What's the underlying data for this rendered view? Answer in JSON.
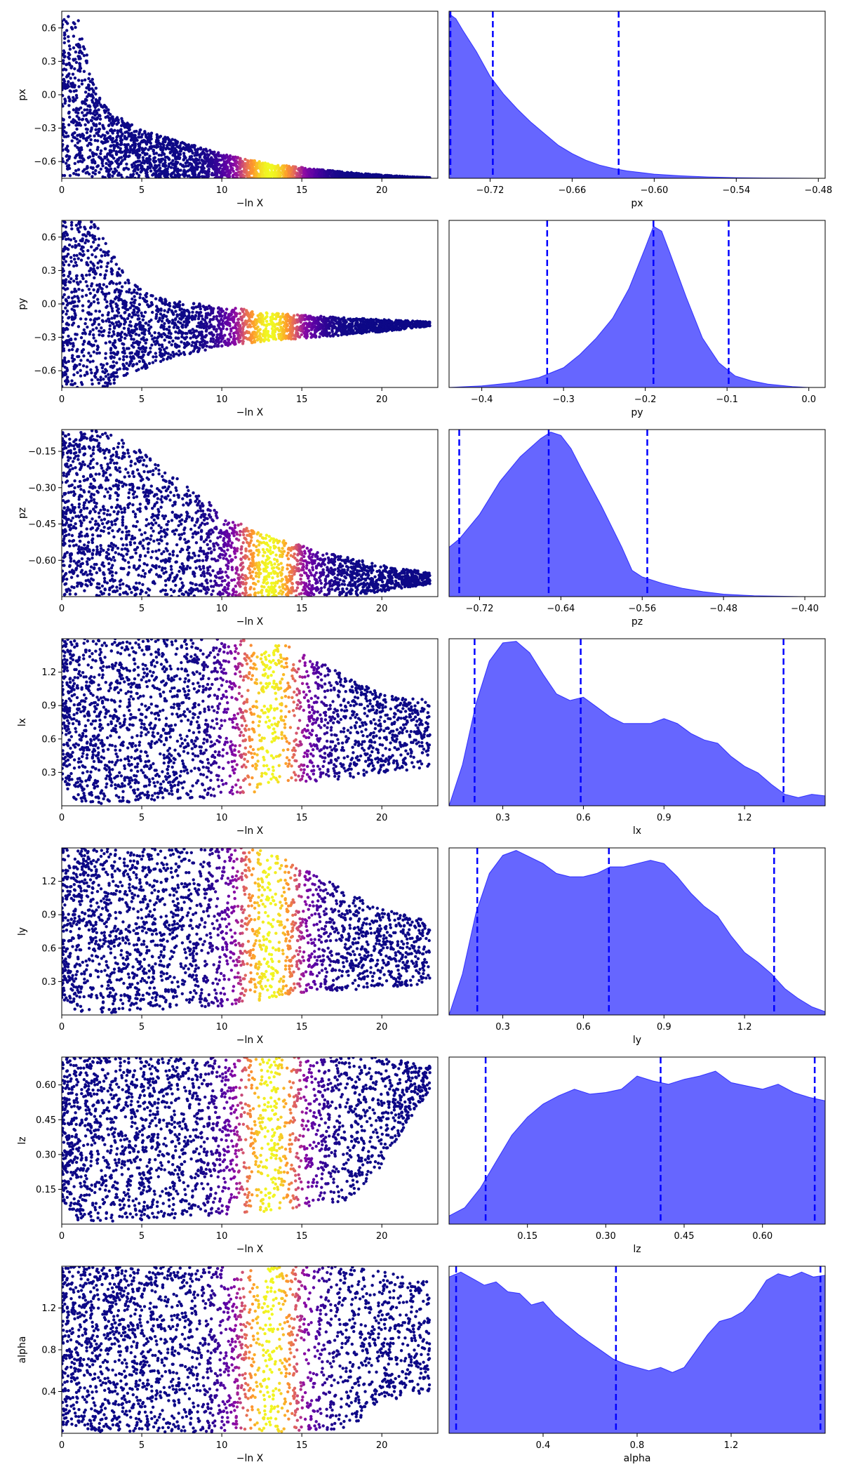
{
  "chart_data": [
    {
      "type": "scatter",
      "xlabel": "−ln X",
      "ylabel": "px",
      "xlim": [
        0,
        23.5
      ],
      "ylim": [
        -0.75,
        0.75
      ],
      "xticks": [
        0,
        5,
        10,
        15,
        20
      ],
      "yticks": [
        -0.6,
        -0.3,
        0.0,
        0.3,
        0.6
      ],
      "ytick_labels": [
        "−0.6",
        "−0.3",
        "0.0",
        "0.3",
        "0.6"
      ],
      "colormap": "plasma",
      "color_peak_x": 13,
      "envelope": {
        "x": [
          0,
          1,
          2,
          3,
          5,
          8,
          10,
          13,
          16,
          19,
          21,
          23
        ],
        "top": [
          0.72,
          0.7,
          0.1,
          -0.15,
          -0.32,
          -0.44,
          -0.53,
          -0.62,
          -0.67,
          -0.71,
          -0.73,
          -0.745
        ],
        "bottom": [
          -0.75,
          -0.75,
          -0.75,
          -0.75,
          -0.75,
          -0.75,
          -0.75,
          -0.75,
          -0.75,
          -0.75,
          -0.75,
          -0.75
        ]
      }
    },
    {
      "type": "area",
      "xlabel": "px",
      "xlim": [
        -0.75,
        -0.475
      ],
      "xticks": [
        -0.72,
        -0.66,
        -0.6,
        -0.54,
        -0.48
      ],
      "xtick_labels": [
        "−0.72",
        "−0.66",
        "−0.60",
        "−0.54",
        "−0.48"
      ],
      "density": {
        "x": [
          -0.75,
          -0.745,
          -0.74,
          -0.73,
          -0.72,
          -0.71,
          -0.7,
          -0.69,
          -0.68,
          -0.67,
          -0.66,
          -0.65,
          -0.64,
          -0.63,
          -0.62,
          -0.61,
          -0.6,
          -0.58,
          -0.56,
          -0.54,
          -0.52,
          -0.5,
          -0.48,
          -0.475
        ],
        "y": [
          1.0,
          0.97,
          0.9,
          0.77,
          0.62,
          0.51,
          0.42,
          0.34,
          0.27,
          0.2,
          0.15,
          0.11,
          0.08,
          0.06,
          0.045,
          0.035,
          0.025,
          0.015,
          0.008,
          0.004,
          0.002,
          0.001,
          0.0,
          0.0
        ]
      },
      "quantiles": [
        -0.749,
        -0.718,
        -0.626
      ]
    },
    {
      "type": "scatter",
      "xlabel": "−ln X",
      "ylabel": "py",
      "xlim": [
        0,
        23.5
      ],
      "ylim": [
        -0.75,
        0.75
      ],
      "xticks": [
        0,
        5,
        10,
        15,
        20
      ],
      "yticks": [
        -0.6,
        -0.3,
        0.0,
        0.3,
        0.6
      ],
      "ytick_labels": [
        "−0.6",
        "−0.3",
        "0.0",
        "0.3",
        "0.6"
      ],
      "colormap": "plasma",
      "color_peak_x": 13,
      "envelope": {
        "x": [
          0,
          2,
          3,
          4,
          5,
          7,
          10,
          13,
          16,
          20,
          23
        ],
        "top": [
          0.75,
          0.75,
          0.5,
          0.25,
          0.12,
          0.03,
          -0.02,
          -0.08,
          -0.11,
          -0.14,
          -0.16
        ],
        "bottom": [
          -0.75,
          -0.75,
          -0.75,
          -0.65,
          -0.6,
          -0.48,
          -0.38,
          -0.33,
          -0.3,
          -0.25,
          -0.2
        ]
      }
    },
    {
      "type": "area",
      "xlabel": "py",
      "xlim": [
        -0.44,
        0.02
      ],
      "xticks": [
        -0.4,
        -0.3,
        -0.2,
        -0.1,
        0.0
      ],
      "xtick_labels": [
        "−0.4",
        "−0.3",
        "−0.2",
        "−0.1",
        "0.0"
      ],
      "density": {
        "x": [
          -0.44,
          -0.4,
          -0.36,
          -0.33,
          -0.3,
          -0.28,
          -0.26,
          -0.24,
          -0.22,
          -0.2,
          -0.19,
          -0.18,
          -0.17,
          -0.15,
          -0.13,
          -0.11,
          -0.09,
          -0.07,
          -0.05,
          -0.02,
          0.0,
          0.02
        ],
        "y": [
          0.0,
          0.01,
          0.03,
          0.06,
          0.12,
          0.2,
          0.3,
          0.42,
          0.6,
          0.85,
          0.98,
          0.95,
          0.82,
          0.55,
          0.3,
          0.15,
          0.07,
          0.04,
          0.02,
          0.005,
          0.0,
          0.0
        ]
      },
      "quantiles": [
        -0.32,
        -0.19,
        -0.098
      ]
    },
    {
      "type": "scatter",
      "xlabel": "−ln X",
      "ylabel": "pz",
      "xlim": [
        0,
        23.5
      ],
      "ylim": [
        -0.75,
        -0.06
      ],
      "xticks": [
        0,
        5,
        10,
        15,
        20
      ],
      "yticks": [
        -0.6,
        -0.45,
        -0.3,
        -0.15
      ],
      "ytick_labels": [
        "−0.60",
        "−0.45",
        "−0.30",
        "−0.15"
      ],
      "colormap": "plasma",
      "color_peak_x": 13,
      "envelope": {
        "x": [
          0,
          2,
          4,
          6,
          8,
          10,
          12,
          14,
          16,
          18,
          20,
          23
        ],
        "top": [
          -0.06,
          -0.06,
          -0.1,
          -0.2,
          -0.3,
          -0.4,
          -0.48,
          -0.52,
          -0.56,
          -0.59,
          -0.62,
          -0.65
        ],
        "bottom": [
          -0.75,
          -0.75,
          -0.75,
          -0.75,
          -0.75,
          -0.75,
          -0.75,
          -0.75,
          -0.75,
          -0.75,
          -0.73,
          -0.7
        ]
      }
    },
    {
      "type": "area",
      "xlabel": "pz",
      "xlim": [
        -0.75,
        -0.38
      ],
      "xticks": [
        -0.72,
        -0.64,
        -0.56,
        -0.48,
        -0.4
      ],
      "xtick_labels": [
        "−0.72",
        "−0.64",
        "−0.56",
        "−0.48",
        "−0.40"
      ],
      "density": {
        "x": [
          -0.75,
          -0.74,
          -0.72,
          -0.7,
          -0.68,
          -0.66,
          -0.65,
          -0.64,
          -0.63,
          -0.62,
          -0.6,
          -0.58,
          -0.57,
          -0.56,
          -0.54,
          -0.52,
          -0.5,
          -0.48,
          -0.45,
          -0.42,
          -0.4,
          -0.38
        ],
        "y": [
          0.3,
          0.35,
          0.5,
          0.7,
          0.85,
          0.96,
          1.0,
          0.98,
          0.9,
          0.78,
          0.55,
          0.3,
          0.16,
          0.12,
          0.08,
          0.05,
          0.03,
          0.015,
          0.005,
          0.002,
          0.0,
          0.0
        ]
      },
      "quantiles": [
        -0.74,
        -0.652,
        -0.555
      ]
    },
    {
      "type": "scatter",
      "xlabel": "−ln X",
      "ylabel": "lx",
      "xlim": [
        0,
        23.5
      ],
      "ylim": [
        0.0,
        1.5
      ],
      "xticks": [
        0,
        5,
        10,
        15,
        20
      ],
      "yticks": [
        0.3,
        0.6,
        0.9,
        1.2
      ],
      "ytick_labels": [
        "0.3",
        "0.6",
        "0.9",
        "1.2"
      ],
      "colormap": "plasma",
      "color_peak_x": 13,
      "envelope": {
        "x": [
          0,
          1,
          3,
          6,
          10,
          12,
          14,
          16,
          18,
          20,
          23
        ],
        "top": [
          1.5,
          1.5,
          1.5,
          1.5,
          1.5,
          1.5,
          1.45,
          1.3,
          1.15,
          1.0,
          0.95
        ],
        "bottom": [
          0.15,
          0.02,
          0.02,
          0.05,
          0.08,
          0.12,
          0.2,
          0.22,
          0.25,
          0.3,
          0.33
        ]
      }
    },
    {
      "type": "area",
      "xlabel": "lx",
      "xlim": [
        0.1,
        1.5
      ],
      "xticks": [
        0.3,
        0.6,
        0.9,
        1.2
      ],
      "xtick_labels": [
        "0.3",
        "0.6",
        "0.9",
        "1.2"
      ],
      "density": {
        "x": [
          0.1,
          0.15,
          0.2,
          0.25,
          0.3,
          0.35,
          0.4,
          0.45,
          0.5,
          0.55,
          0.6,
          0.65,
          0.7,
          0.75,
          0.8,
          0.85,
          0.9,
          0.95,
          1.0,
          1.05,
          1.1,
          1.15,
          1.2,
          1.25,
          1.3,
          1.35,
          1.4,
          1.45,
          1.5
        ],
        "y": [
          0.0,
          0.25,
          0.62,
          0.88,
          0.99,
          1.0,
          0.93,
          0.8,
          0.68,
          0.64,
          0.66,
          0.6,
          0.54,
          0.5,
          0.5,
          0.5,
          0.53,
          0.5,
          0.44,
          0.4,
          0.38,
          0.3,
          0.24,
          0.2,
          0.13,
          0.07,
          0.05,
          0.07,
          0.06
        ]
      },
      "quantiles": [
        0.195,
        0.59,
        1.345
      ]
    },
    {
      "type": "scatter",
      "xlabel": "−ln X",
      "ylabel": "ly",
      "xlim": [
        0,
        23.5
      ],
      "ylim": [
        0.0,
        1.5
      ],
      "xticks": [
        0,
        5,
        10,
        15,
        20
      ],
      "yticks": [
        0.3,
        0.6,
        0.9,
        1.2
      ],
      "ytick_labels": [
        "0.3",
        "0.6",
        "0.9",
        "1.2"
      ],
      "colormap": "plasma",
      "color_peak_x": 13,
      "envelope": {
        "x": [
          0,
          1,
          3,
          6,
          10,
          12,
          14,
          16,
          18,
          20,
          23
        ],
        "top": [
          1.5,
          1.5,
          1.5,
          1.5,
          1.5,
          1.5,
          1.4,
          1.25,
          1.1,
          0.95,
          0.85
        ],
        "bottom": [
          0.15,
          0.02,
          0.02,
          0.05,
          0.08,
          0.12,
          0.18,
          0.2,
          0.22,
          0.25,
          0.27
        ]
      }
    },
    {
      "type": "area",
      "xlabel": "ly",
      "xlim": [
        0.1,
        1.5
      ],
      "xticks": [
        0.3,
        0.6,
        0.9,
        1.2
      ],
      "xtick_labels": [
        "0.3",
        "0.6",
        "0.9",
        "1.2"
      ],
      "density": {
        "x": [
          0.1,
          0.15,
          0.2,
          0.25,
          0.3,
          0.35,
          0.4,
          0.45,
          0.5,
          0.55,
          0.6,
          0.65,
          0.7,
          0.75,
          0.8,
          0.85,
          0.9,
          0.95,
          1.0,
          1.05,
          1.1,
          1.15,
          1.2,
          1.25,
          1.3,
          1.35,
          1.4,
          1.45,
          1.5
        ],
        "y": [
          0.0,
          0.25,
          0.62,
          0.86,
          0.97,
          1.0,
          0.96,
          0.92,
          0.86,
          0.84,
          0.84,
          0.86,
          0.9,
          0.9,
          0.92,
          0.94,
          0.92,
          0.84,
          0.74,
          0.66,
          0.6,
          0.48,
          0.38,
          0.32,
          0.25,
          0.16,
          0.1,
          0.05,
          0.02
        ]
      },
      "quantiles": [
        0.205,
        0.695,
        1.31
      ]
    },
    {
      "type": "scatter",
      "xlabel": "−ln X",
      "ylabel": "lz",
      "xlim": [
        0,
        23.5
      ],
      "ylim": [
        0.0,
        0.72
      ],
      "xticks": [
        0,
        5,
        10,
        15,
        20
      ],
      "yticks": [
        0.15,
        0.3,
        0.45,
        0.6
      ],
      "ytick_labels": [
        "0.15",
        "0.30",
        "0.45",
        "0.60"
      ],
      "colormap": "plasma",
      "color_peak_x": 13,
      "envelope": {
        "x": [
          0,
          1,
          3,
          6,
          10,
          12,
          14,
          16,
          18,
          20,
          23
        ],
        "top": [
          0.72,
          0.72,
          0.72,
          0.72,
          0.72,
          0.72,
          0.72,
          0.72,
          0.72,
          0.72,
          0.68
        ],
        "bottom": [
          0.1,
          0.01,
          0.01,
          0.02,
          0.04,
          0.05,
          0.06,
          0.08,
          0.1,
          0.25,
          0.58
        ]
      }
    },
    {
      "type": "area",
      "xlabel": "lz",
      "xlim": [
        0.0,
        0.72
      ],
      "xticks": [
        0.15,
        0.3,
        0.45,
        0.6
      ],
      "xtick_labels": [
        "0.15",
        "0.30",
        "0.45",
        "0.60"
      ],
      "density": {
        "x": [
          0.0,
          0.03,
          0.06,
          0.09,
          0.12,
          0.15,
          0.18,
          0.21,
          0.24,
          0.27,
          0.3,
          0.33,
          0.36,
          0.39,
          0.42,
          0.45,
          0.48,
          0.51,
          0.54,
          0.57,
          0.6,
          0.63,
          0.66,
          0.69,
          0.72
        ],
        "y": [
          0.05,
          0.1,
          0.22,
          0.38,
          0.54,
          0.65,
          0.73,
          0.78,
          0.82,
          0.79,
          0.8,
          0.82,
          0.9,
          0.87,
          0.85,
          0.88,
          0.9,
          0.93,
          0.86,
          0.84,
          0.82,
          0.85,
          0.8,
          0.77,
          0.75
        ]
      },
      "quantiles": [
        0.07,
        0.405,
        0.7
      ]
    },
    {
      "type": "scatter",
      "xlabel": "−ln X",
      "ylabel": "alpha",
      "xlim": [
        0,
        23.5
      ],
      "ylim": [
        0.0,
        1.6
      ],
      "xticks": [
        0,
        5,
        10,
        15,
        20
      ],
      "yticks": [
        0.4,
        0.8,
        1.2
      ],
      "ytick_labels": [
        "0.4",
        "0.8",
        "1.2"
      ],
      "colormap": "plasma",
      "color_peak_x": 13,
      "envelope": {
        "x": [
          0,
          1,
          3,
          6,
          10,
          12,
          14,
          16,
          18,
          20,
          23
        ],
        "top": [
          1.6,
          1.6,
          1.6,
          1.6,
          1.6,
          1.6,
          1.6,
          1.6,
          1.6,
          1.55,
          1.45
        ],
        "bottom": [
          0.02,
          0.01,
          0.01,
          0.01,
          0.01,
          0.01,
          0.01,
          0.02,
          0.05,
          0.3,
          0.4
        ]
      }
    },
    {
      "type": "area",
      "xlabel": "alpha",
      "xlim": [
        0.0,
        1.6
      ],
      "xticks": [
        0.4,
        0.8,
        1.2
      ],
      "xtick_labels": [
        "0.4",
        "0.8",
        "1.2"
      ],
      "density": {
        "x": [
          0.0,
          0.05,
          0.1,
          0.15,
          0.2,
          0.25,
          0.3,
          0.35,
          0.4,
          0.45,
          0.5,
          0.55,
          0.6,
          0.65,
          0.7,
          0.75,
          0.8,
          0.85,
          0.9,
          0.95,
          1.0,
          1.05,
          1.1,
          1.15,
          1.2,
          1.25,
          1.3,
          1.35,
          1.4,
          1.45,
          1.5,
          1.55,
          1.6
        ],
        "y": [
          0.95,
          0.98,
          0.94,
          0.9,
          0.92,
          0.86,
          0.85,
          0.78,
          0.8,
          0.72,
          0.66,
          0.6,
          0.55,
          0.5,
          0.45,
          0.42,
          0.4,
          0.38,
          0.4,
          0.37,
          0.4,
          0.5,
          0.6,
          0.68,
          0.7,
          0.74,
          0.82,
          0.93,
          0.97,
          0.95,
          0.98,
          0.95,
          0.96
        ]
      },
      "quantiles": [
        0.03,
        0.71,
        1.58
      ]
    }
  ]
}
